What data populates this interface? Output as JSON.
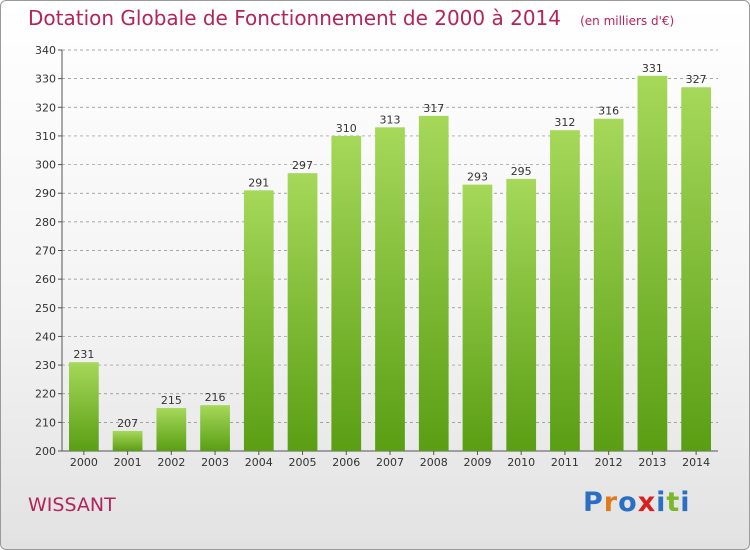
{
  "title": "Dotation Globale de Fonctionnement de 2000 à 2014",
  "subtitle": "(en milliers d'€)",
  "commune": "WISSANT",
  "logo": {
    "letters": [
      "P",
      "r",
      "o",
      "x",
      "i",
      "t",
      "i"
    ],
    "colors": [
      "#2a6fc4",
      "#e07a1a",
      "#2a6fc4",
      "#d81e1e",
      "#2a6fc4",
      "#7ab82a",
      "#2a6fc4"
    ]
  },
  "colors": {
    "bar_top": "#a6d85a",
    "bar_bottom": "#5a9e14",
    "title": "#b3245a",
    "grid": "#8a8a8a"
  },
  "chart_data": {
    "type": "bar",
    "title": "Dotation Globale de Fonctionnement de 2000 à 2014",
    "subtitle": "(en milliers d'€)",
    "categories": [
      "2000",
      "2001",
      "2002",
      "2003",
      "2004",
      "2005",
      "2006",
      "2007",
      "2008",
      "2009",
      "2010",
      "2011",
      "2012",
      "2013",
      "2014"
    ],
    "values": [
      231,
      207,
      215,
      216,
      291,
      297,
      310,
      313,
      317,
      293,
      295,
      312,
      316,
      331,
      327
    ],
    "ylim": [
      200,
      340
    ],
    "yticks": [
      200,
      210,
      220,
      230,
      240,
      250,
      260,
      270,
      280,
      290,
      300,
      310,
      320,
      330,
      340
    ],
    "grid": "horizontal dashed",
    "data_labels": true
  }
}
